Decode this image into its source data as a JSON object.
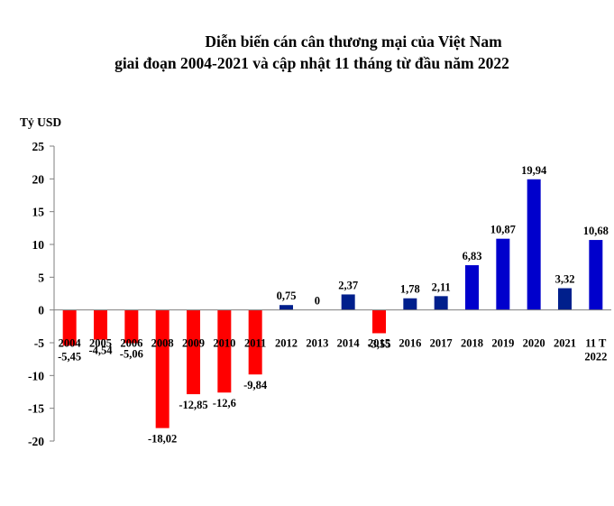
{
  "chart_data": {
    "type": "bar",
    "title_line1": "Diễn biến cán cân thương mại của Việt Nam",
    "title_line2": "giai đoạn 2004-2021 và cập nhật 11 tháng từ đầu năm 2022",
    "ylabel": "Tỷ USD",
    "xlabel": "",
    "ylim": [
      -20,
      25
    ],
    "yticks": [
      25,
      20,
      15,
      10,
      5,
      0,
      -5,
      -10,
      -15,
      -20
    ],
    "categories": [
      "2004",
      "2005",
      "2006",
      "2008",
      "2009",
      "2010",
      "2011",
      "2012",
      "2013",
      "2014",
      "2015",
      "2016",
      "2017",
      "2018",
      "2019",
      "2020",
      "2021",
      "11 T 2022"
    ],
    "category_lines": [
      [
        "2004"
      ],
      [
        "2005"
      ],
      [
        "2006"
      ],
      [
        "2008"
      ],
      [
        "2009"
      ],
      [
        "2010"
      ],
      [
        "2011"
      ],
      [
        "2012"
      ],
      [
        "2013"
      ],
      [
        "2014"
      ],
      [
        "2015"
      ],
      [
        "2016"
      ],
      [
        "2017"
      ],
      [
        "2018"
      ],
      [
        "2019"
      ],
      [
        "2020"
      ],
      [
        "2021"
      ],
      [
        "11 T",
        "2022"
      ]
    ],
    "values": [
      -5.45,
      -4.54,
      -5.06,
      -18.02,
      -12.85,
      -12.6,
      -9.84,
      0.75,
      0,
      2.37,
      -3.55,
      1.78,
      2.11,
      6.83,
      10.87,
      19.94,
      3.32,
      10.68
    ],
    "value_labels": [
      "-5,45",
      "-4,54",
      "-5,06",
      "-18,02",
      "-12,85",
      "-12,6",
      "-9,84",
      "0,75",
      "0",
      "2,37",
      "-3,55",
      "1,78",
      "2,11",
      "6,83",
      "10,87",
      "19,94",
      "3,32",
      "10,68"
    ],
    "colors": {
      "negative": "#ff0000",
      "positive_small": "#001f8c",
      "positive_large": "#0000cc"
    },
    "grid": false
  }
}
